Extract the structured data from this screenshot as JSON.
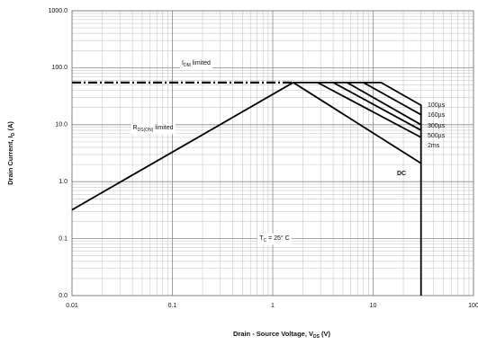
{
  "chart_data": {
    "type": "line",
    "log_x": true,
    "log_y": true,
    "grid": true,
    "xlim": [
      0.01,
      100
    ],
    "xticks": [
      0.01,
      0.1,
      1,
      10,
      100
    ],
    "ylim": [
      0.01,
      1000
    ],
    "yticks": [
      {
        "value": 0.01,
        "label": "0.0"
      },
      0.1,
      {
        "value": 1,
        "label": "1.0"
      },
      {
        "value": 10,
        "label": "10.0"
      },
      {
        "value": 100,
        "label": "100.0"
      },
      {
        "value": 1000,
        "label": "1000.0"
      }
    ],
    "x_label": [
      "Drain - Source Voltage, V",
      "DS",
      " (V)"
    ],
    "y_label": [
      "Drain Current, I",
      "D",
      " (A)"
    ],
    "annotations": [
      [
        "I",
        "DM",
        " limited"
      ],
      [
        "R",
        "DS(ON)",
        " limited"
      ],
      [
        "T",
        "C",
        " = 25° C"
      ]
    ],
    "color": "#000000",
    "series": [
      {
        "style": "dash-dot",
        "x": [
          0.01,
          1.6
        ],
        "values": [
          55,
          55
        ]
      },
      {
        "x": [
          1.6,
          12
        ],
        "values": [
          55,
          55
        ]
      },
      {
        "name": "100µs",
        "x": [
          12,
          30,
          30
        ],
        "values": [
          55,
          22,
          2.1
        ]
      },
      {
        "name": "160µs",
        "x": [
          8,
          30
        ],
        "values": [
          55,
          15
        ]
      },
      {
        "name": "300µs",
        "x": [
          5.5,
          30
        ],
        "values": [
          55,
          10
        ]
      },
      {
        "name": "500µs",
        "x": [
          4,
          30
        ],
        "values": [
          55,
          8
        ]
      },
      {
        "name": "2ms",
        "x": [
          2.8,
          30
        ],
        "values": [
          55,
          6
        ]
      },
      {
        "name": "DC",
        "x": [
          0.01,
          1.6,
          30,
          30
        ],
        "values": [
          0.32,
          55,
          2.1,
          0.01
        ]
      }
    ]
  }
}
